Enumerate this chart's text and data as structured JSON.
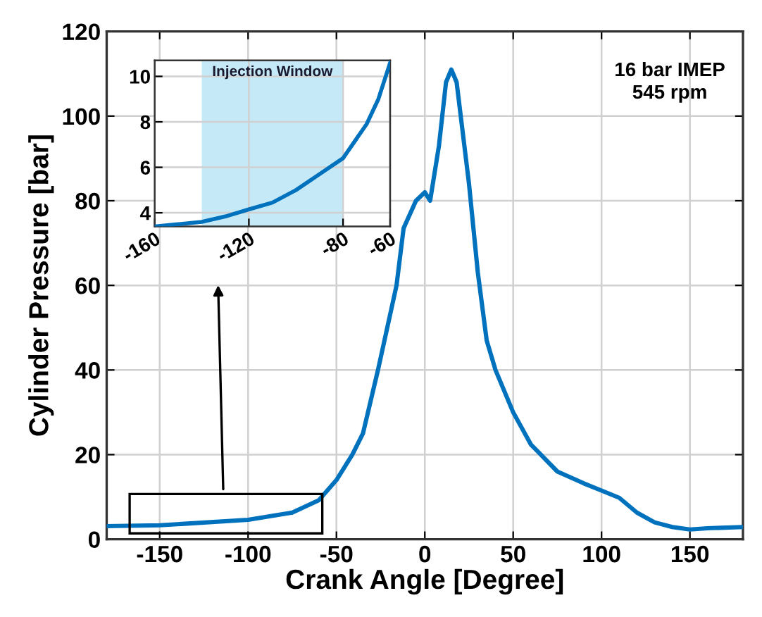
{
  "chart_data": [
    {
      "type": "line",
      "xlabel": "Crank Angle [Degree]",
      "ylabel": "Cylinder Pressure [bar]",
      "x": [
        -180,
        -150,
        -100,
        -75,
        -60,
        -50,
        -41,
        -35,
        -26.5,
        -16,
        -12,
        -5,
        0,
        3,
        8,
        12,
        15,
        18,
        25,
        30,
        35,
        40,
        50,
        60,
        75,
        90,
        100,
        110,
        120,
        130,
        140,
        150,
        160,
        180
      ],
      "series": [
        {
          "color": "#0072bd",
          "values": [
            3.1,
            3.3,
            4.6,
            6.3,
            9.2,
            14,
            20,
            25,
            40,
            60,
            73.5,
            80,
            82,
            80,
            93,
            108,
            111,
            108,
            84,
            63,
            47,
            40,
            30,
            22.4,
            16,
            13.2,
            11.5,
            9.8,
            6.3,
            4,
            2.9,
            2.3,
            2.6,
            2.9
          ]
        }
      ],
      "xlim": [
        -180,
        180
      ],
      "ylim": [
        0,
        120
      ],
      "xticks": [
        -150,
        -100,
        -50,
        0,
        50,
        100,
        150
      ],
      "yticks": [
        0,
        20,
        40,
        60,
        80,
        100,
        120
      ],
      "grid": true,
      "line_style": "solid",
      "marker": "none",
      "annotations": [
        "16 bar IMEP\n545 rpm"
      ]
    },
    {
      "type": "line",
      "x": [
        -160,
        -150,
        -140,
        -130,
        -120,
        -110,
        -100,
        -90,
        -80,
        -70,
        -65,
        -60
      ],
      "series": [
        {
          "color": "#0072bd",
          "values": [
            3.4,
            3.5,
            3.6,
            3.84,
            4.15,
            4.45,
            5.0,
            5.7,
            6.4,
            7.9,
            9.0,
            10.6
          ]
        }
      ],
      "xlim": [
        -160,
        -60
      ],
      "ylim": [
        3.4,
        10.7
      ],
      "xticks": [
        -160,
        -120,
        -80,
        -60
      ],
      "yticks": [
        4,
        6,
        8,
        10
      ],
      "bands": [
        {
          "axis": "x",
          "from": -140,
          "to": -80,
          "label": "Injection Window",
          "color": "#c6e9f7"
        }
      ],
      "grid": true,
      "line_style": "solid",
      "marker": "none"
    }
  ]
}
